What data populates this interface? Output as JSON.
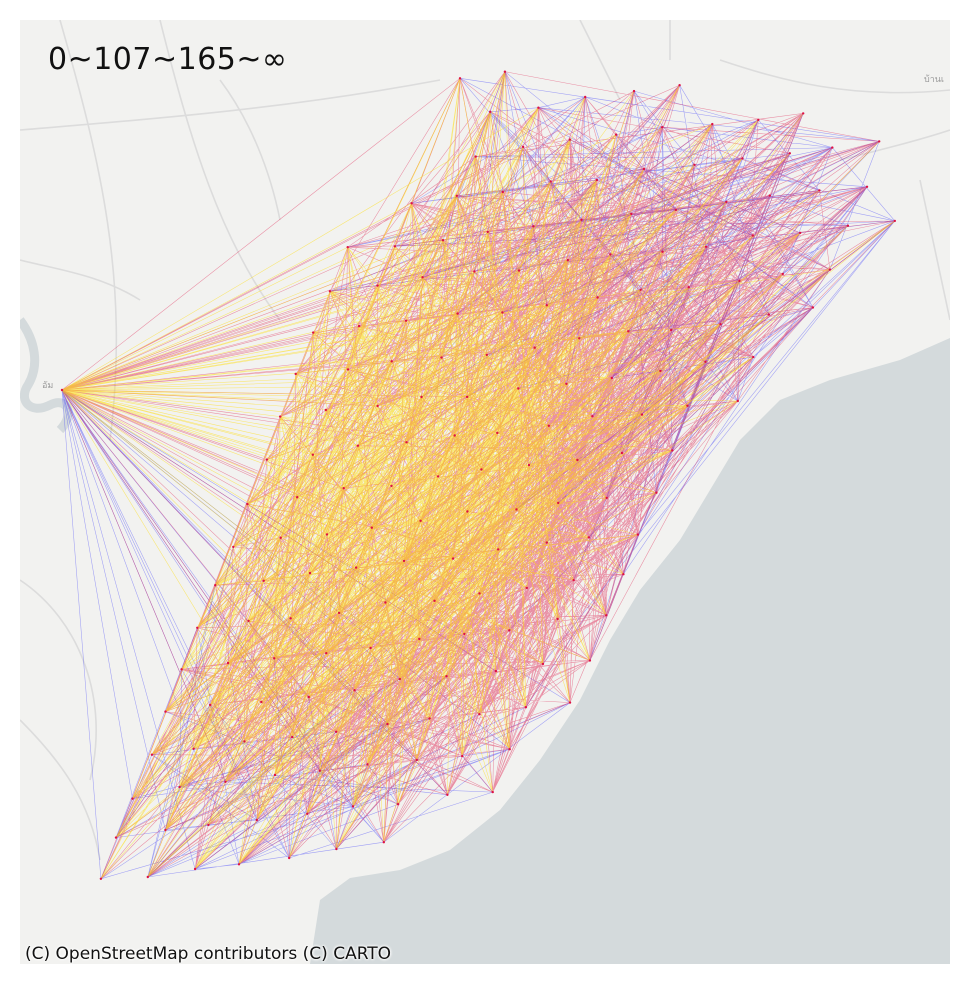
{
  "map": {
    "legend_title": "0~107~165~∞",
    "attribution": "(C) OpenStreetMap contributors (C) CARTO",
    "basemap": "CARTO light (Positron)",
    "colors": {
      "land": "#f2f2f0",
      "water": "#d4dadc",
      "road": "#dcdcdc",
      "band_low": "#ffdd00",
      "band_mid": "#dd1144",
      "band_high": "#0000ff"
    },
    "distance_bands": [
      {
        "label": "0~107",
        "color": "#ffdd00"
      },
      {
        "label": "107~165",
        "color": "#dd1144"
      },
      {
        "label": "165~∞",
        "color": "#0000ff"
      }
    ],
    "place_labels": [
      "บ้านเ",
      "อัม"
    ]
  }
}
